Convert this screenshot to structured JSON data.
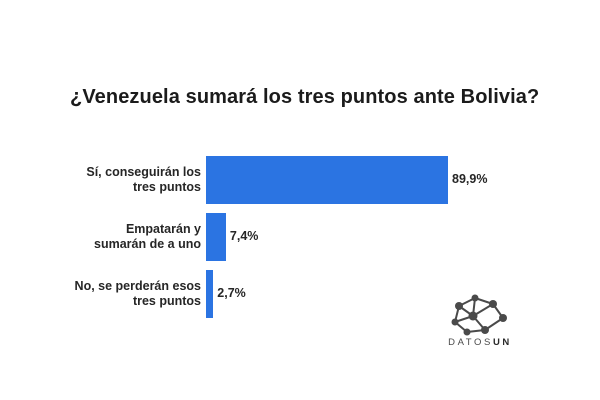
{
  "title": "¿Venezuela sumará los tres puntos ante Bolivia?",
  "colors": {
    "bar": "#2b74e2",
    "text": "#262626",
    "logo": "#4a4a4a"
  },
  "logo": {
    "text_light": "DATOS",
    "text_bold": "UN",
    "icon": "network-nodes-icon"
  },
  "chart_data": {
    "type": "bar",
    "orientation": "horizontal",
    "categories": [
      [
        "Sí, conseguirán los",
        "tres puntos"
      ],
      [
        "Empatarán y",
        "sumarán de a uno"
      ],
      [
        "No, se perderán esos",
        "tres puntos"
      ]
    ],
    "values": [
      89.9,
      7.4,
      2.7
    ],
    "value_labels": [
      "89,9%",
      "7,4%",
      "2,7%"
    ],
    "xlim": [
      0,
      100
    ],
    "grid": false,
    "legend": "none"
  }
}
